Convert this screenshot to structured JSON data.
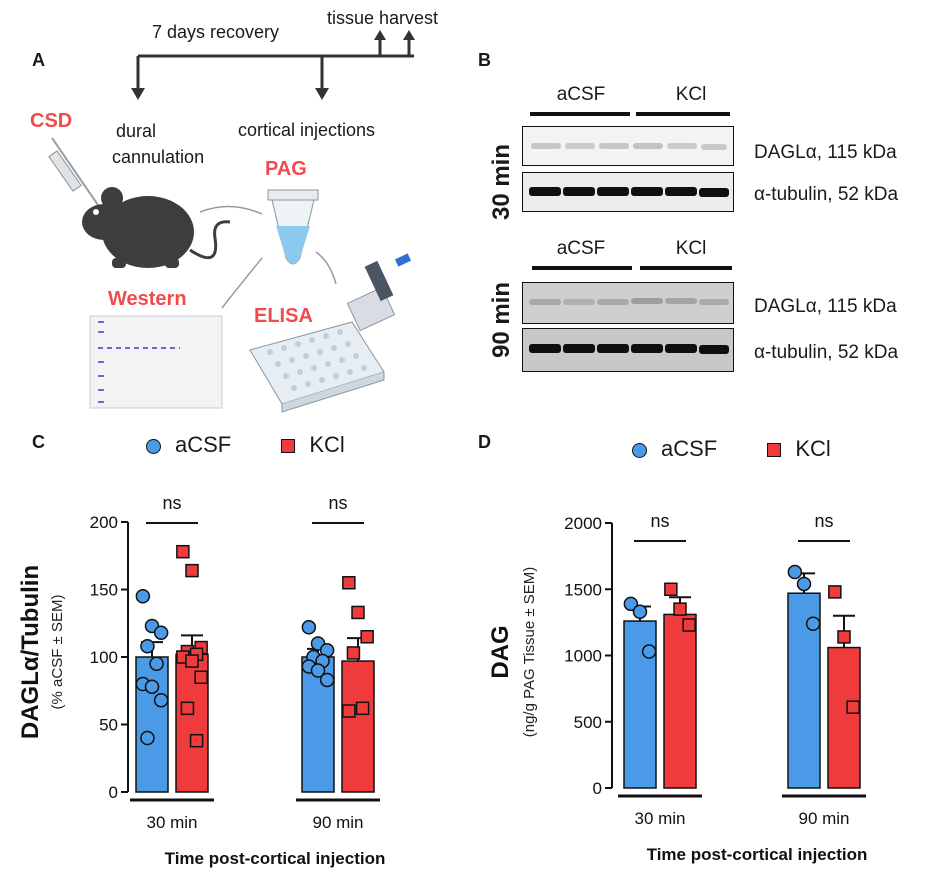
{
  "panel_a": {
    "letter": "A",
    "timeline": {
      "recovery": "7 days recovery",
      "harvest": "tissue harvest",
      "dural": [
        "dural",
        "cannulation"
      ],
      "cortical": "cortical injections"
    },
    "labels": {
      "csd": "CSD",
      "pag": "PAG",
      "western": "Western",
      "elisa": "ELISA"
    }
  },
  "panel_b": {
    "letter": "B",
    "times": [
      "30 min",
      "90 min"
    ],
    "groups": [
      "aCSF",
      "KCl"
    ],
    "bands": [
      "DAGLα, 115 kDa",
      "α-tubulin, 52 kDa"
    ]
  },
  "legend": {
    "acsf": "aCSF",
    "kcl": "KCl"
  },
  "colors": {
    "acsf": "#4a9ae8",
    "kcl": "#ef3b3b",
    "accent_red": "#ef4d4d"
  },
  "chart_data": [
    {
      "panel": "C",
      "type": "bar",
      "categories": [
        "30 min",
        "90 min"
      ],
      "series": [
        {
          "name": "aCSF",
          "values": [
            100,
            100
          ],
          "sem": [
            11,
            6
          ],
          "points": [
            [
              145,
              123,
              118,
              108,
              95,
              80,
              78,
              68,
              40
            ],
            [
              122,
              110,
              105,
              100,
              97,
              93,
              90,
              83
            ]
          ]
        },
        {
          "name": "KCl",
          "values": [
            102,
            97
          ],
          "sem": [
            14,
            17
          ],
          "points": [
            [
              178,
              164,
              107,
              104,
              102,
              100,
              97,
              85,
              62,
              38
            ],
            [
              155,
              133,
              115,
              103,
              62,
              60
            ]
          ]
        }
      ],
      "significance": [
        "ns",
        "ns"
      ],
      "ylabel": "DAGLα/Tubulin",
      "ylabel_sub": "(% aCSF ± SEM)",
      "xlabel": "Time post-cortical injection",
      "ylim": [
        0,
        200
      ],
      "yticks": [
        0,
        50,
        100,
        150,
        200
      ]
    },
    {
      "panel": "D",
      "type": "bar",
      "categories": [
        "30 min",
        "90 min"
      ],
      "series": [
        {
          "name": "aCSF",
          "values": [
            1260,
            1470
          ],
          "sem": [
            110,
            150
          ],
          "points": [
            [
              1390,
              1330,
              1030
            ],
            [
              1630,
              1540,
              1240
            ]
          ]
        },
        {
          "name": "KCl",
          "values": [
            1310,
            1060
          ],
          "sem": [
            130,
            240
          ],
          "points": [
            [
              1500,
              1350,
              1230
            ],
            [
              1480,
              1140,
              610
            ]
          ]
        }
      ],
      "significance": [
        "ns",
        "ns"
      ],
      "ylabel": "DAG",
      "ylabel_sub": "(ng/g PAG Tissue ± SEM)",
      "xlabel": "Time post-cortical injection",
      "ylim": [
        0,
        2000
      ],
      "yticks": [
        0,
        500,
        1000,
        1500,
        2000
      ]
    }
  ]
}
